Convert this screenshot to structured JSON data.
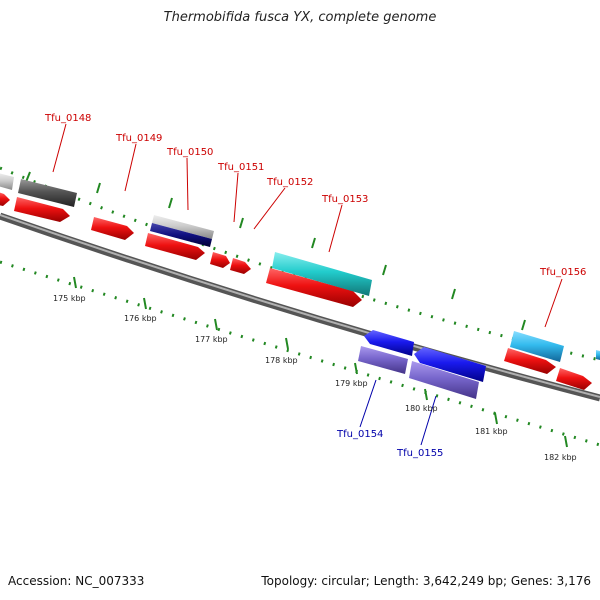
{
  "title": "Thermobifida fusca YX, complete genome",
  "footer": {
    "accession": "Accession: NC_007333",
    "summary": "Topology: circular; Length: 3,642,249 bp; Genes: 3,176"
  },
  "colors": {
    "backbone": "#7f7f7f",
    "gene_forward_red": "#ee1111",
    "tick_green": "#228822",
    "label_red": "#cc0000",
    "label_blue": "#0000aa",
    "cyan": "#22cccc",
    "sky": "#33bbee",
    "navy": "#101080",
    "blue": "#1a1aee",
    "slate": "#7766cc",
    "dark_grey": "#555555",
    "light_grey": "#cccccc"
  },
  "scale_labels": [
    "175 kbp",
    "176 kbp",
    "177 kbp",
    "178 kbp",
    "179 kbp",
    "180 kbp",
    "181 kbp",
    "182 kbp"
  ],
  "gene_labels": [
    {
      "name": "Tfu_0148",
      "strand": "forward"
    },
    {
      "name": "Tfu_0149",
      "strand": "forward"
    },
    {
      "name": "Tfu_0150",
      "strand": "forward"
    },
    {
      "name": "Tfu_0151",
      "strand": "forward"
    },
    {
      "name": "Tfu_0152",
      "strand": "forward"
    },
    {
      "name": "Tfu_0153",
      "strand": "forward"
    },
    {
      "name": "Tfu_0156",
      "strand": "forward"
    },
    {
      "name": "Tfu_0154",
      "strand": "reverse"
    },
    {
      "name": "Tfu_0155",
      "strand": "reverse"
    }
  ]
}
